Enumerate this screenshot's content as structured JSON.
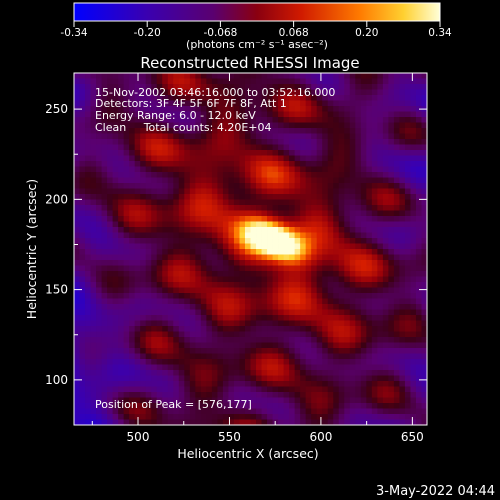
{
  "colorbar": {
    "ticks": [
      "-0.34",
      "-0.20",
      "-0.068",
      "0.068",
      "0.20",
      "0.34"
    ],
    "units_label": "(photons cm⁻² s⁻¹ asec⁻²)"
  },
  "title": "Reconstructed RHESSI Image",
  "info_lines": [
    "15-Nov-2002 03:46:16.000 to 03:52:16.000",
    "Detectors: 3F 4F 5F 6F 7F 8F, Att 1",
    "Energy Range: 6.0 - 12.0 keV",
    "Clean     Total counts: 4.20E+04"
  ],
  "peak_text": "Position of Peak = [576,177]",
  "footer_date": "3-May-2022 04:44",
  "chart_data": {
    "type": "heatmap",
    "xlabel": "Heliocentric X (arcsec)",
    "ylabel": "Heliocentric Y (arcsec)",
    "x_ticks": [
      500,
      550,
      600,
      650
    ],
    "y_ticks": [
      100,
      150,
      200,
      250
    ],
    "xlim": [
      465,
      658
    ],
    "ylim": [
      75,
      270
    ],
    "colorbar_range": [
      -0.34,
      0.34
    ],
    "peak": [
      576,
      177
    ]
  },
  "colors": {
    "background": "#000000",
    "text": "#ffffff"
  }
}
